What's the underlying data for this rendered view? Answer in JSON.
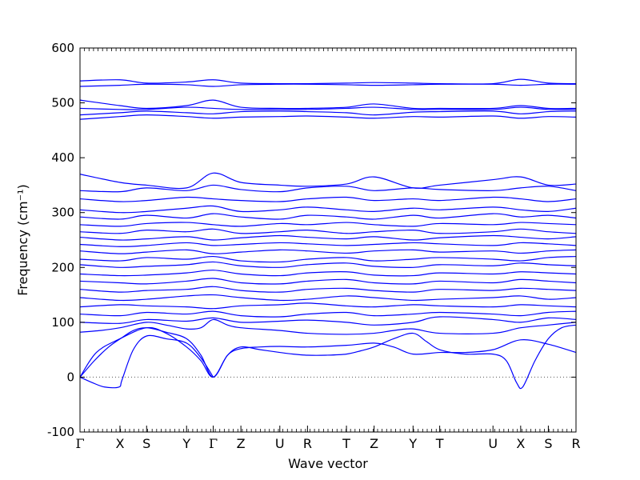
{
  "chart_data": {
    "type": "line",
    "title": "",
    "xlabel": "Wave vector",
    "ylabel": "Frequency (cm⁻¹)",
    "ylim": [
      -100,
      600
    ],
    "yticks": [
      -100,
      0,
      100,
      200,
      300,
      400,
      500,
      600
    ],
    "xlim": [
      0,
      24.2
    ],
    "kpoints": [
      {
        "label": "Γ",
        "x": 0
      },
      {
        "label": "X",
        "x": 1.95
      },
      {
        "label": "S",
        "x": 3.25
      },
      {
        "label": "Y",
        "x": 5.2
      },
      {
        "label": "Γ",
        "x": 6.5
      },
      {
        "label": "Z",
        "x": 7.85
      },
      {
        "label": "U",
        "x": 9.75
      },
      {
        "label": "R",
        "x": 11.1
      },
      {
        "label": "T",
        "x": 13.0
      },
      {
        "label": "Z",
        "x": 14.35
      },
      {
        "label": "Y",
        "x": 16.25
      },
      {
        "label": "T",
        "x": 17.55
      },
      {
        "label": "U",
        "x": 20.15
      },
      {
        "label": "X",
        "x": 21.5
      },
      {
        "label": "S",
        "x": 22.85
      },
      {
        "label": "R",
        "x": 24.2
      }
    ],
    "zero_line": {
      "y": 0,
      "style": "dotted"
    },
    "line_color": "#0000ff",
    "series": [
      {
        "x": [
          0,
          0.6,
          1.2,
          1.9,
          2.05,
          2.6,
          3.25,
          4.2,
          5.2,
          5.9,
          6.5
        ],
        "values": [
          0,
          -10,
          -18,
          -18,
          -5,
          50,
          75,
          70,
          62,
          35,
          0
        ]
      },
      {
        "x": [
          0,
          0.7,
          1.4,
          2.05,
          2.6,
          3.25,
          4.2,
          5.2,
          5.9,
          6.5,
          7.2,
          7.85,
          8.8,
          9.75,
          10.4,
          11.1,
          12.0,
          13.0,
          13.7,
          14.35,
          15.3,
          16.25,
          16.9,
          17.55,
          18.8,
          20.15,
          20.8,
          21.3,
          21.6,
          22.2,
          22.85,
          23.5,
          24.2
        ],
        "values": [
          0,
          30,
          55,
          72,
          85,
          90,
          82,
          70,
          40,
          0,
          40,
          55,
          50,
          45,
          42,
          40,
          40,
          42,
          48,
          55,
          70,
          80,
          65,
          50,
          42,
          42,
          30,
          -10,
          -18,
          30,
          70,
          90,
          95
        ]
      },
      {
        "x": [
          0,
          0.8,
          1.95,
          3.25,
          4.2,
          5.2,
          5.9,
          6.5,
          7.2,
          7.85,
          8.8,
          9.75,
          11.1,
          13.0,
          14.35,
          15.3,
          16.25,
          17.55,
          18.8,
          20.15,
          21.5,
          22.85,
          24.2
        ],
        "values": [
          0,
          45,
          70,
          90,
          80,
          55,
          30,
          0,
          40,
          52,
          55,
          56,
          55,
          58,
          62,
          55,
          42,
          45,
          45,
          50,
          68,
          60,
          45
        ]
      },
      {
        "x": [
          0,
          1.0,
          1.95,
          3.25,
          4.2,
          5.2,
          5.9,
          6.5,
          7.2,
          7.85,
          9.75,
          11.1,
          13.0,
          14.35,
          15.3,
          16.25,
          17.55,
          20.15,
          21.5,
          22.85,
          24.2
        ],
        "values": [
          82,
          85,
          90,
          100,
          95,
          88,
          90,
          105,
          95,
          90,
          85,
          80,
          78,
          80,
          85,
          88,
          80,
          80,
          90,
          95,
          100
        ]
      },
      {
        "x": [
          0,
          1.95,
          3.25,
          5.2,
          6.5,
          7.85,
          9.75,
          11.1,
          13.0,
          14.35,
          16.25,
          17.55,
          20.15,
          21.5,
          22.85,
          24.2
        ],
        "values": [
          100,
          98,
          105,
          102,
          108,
          100,
          102,
          104,
          100,
          95,
          100,
          110,
          105,
          100,
          108,
          105
        ]
      },
      {
        "x": [
          0,
          1.95,
          3.25,
          5.2,
          6.5,
          7.85,
          9.75,
          11.1,
          13.0,
          14.35,
          16.25,
          17.55,
          20.15,
          21.5,
          22.85,
          24.2
        ],
        "values": [
          115,
          112,
          118,
          115,
          120,
          112,
          110,
          115,
          118,
          112,
          115,
          118,
          115,
          112,
          118,
          120
        ]
      },
      {
        "x": [
          0,
          1.95,
          3.25,
          5.2,
          6.5,
          7.85,
          9.75,
          11.1,
          13.0,
          14.35,
          16.25,
          17.55,
          20.15,
          21.5,
          22.85,
          24.2
        ],
        "values": [
          128,
          132,
          130,
          128,
          125,
          130,
          132,
          135,
          130,
          128,
          132,
          130,
          128,
          132,
          130,
          128
        ]
      },
      {
        "x": [
          0,
          1.95,
          3.25,
          5.2,
          6.5,
          7.85,
          9.75,
          11.1,
          13.0,
          14.35,
          16.25,
          17.55,
          20.15,
          21.5,
          22.85,
          24.2
        ],
        "values": [
          145,
          140,
          142,
          148,
          150,
          145,
          140,
          142,
          148,
          145,
          140,
          142,
          145,
          148,
          142,
          145
        ]
      },
      {
        "x": [
          0,
          1.95,
          3.25,
          5.2,
          6.5,
          7.85,
          9.75,
          11.1,
          13.0,
          14.35,
          16.25,
          17.55,
          20.15,
          21.5,
          22.85,
          24.2
        ],
        "values": [
          160,
          155,
          158,
          160,
          165,
          158,
          155,
          160,
          162,
          158,
          155,
          160,
          158,
          162,
          160,
          158
        ]
      },
      {
        "x": [
          0,
          1.95,
          3.25,
          5.2,
          6.5,
          7.85,
          9.75,
          11.1,
          13.0,
          14.35,
          16.25,
          17.55,
          20.15,
          21.5,
          22.85,
          24.2
        ],
        "values": [
          175,
          172,
          170,
          175,
          180,
          172,
          170,
          175,
          178,
          172,
          170,
          175,
          172,
          178,
          175,
          172
        ]
      },
      {
        "x": [
          0,
          1.95,
          3.25,
          5.2,
          6.5,
          7.85,
          9.75,
          11.1,
          13.0,
          14.35,
          16.25,
          17.55,
          20.15,
          21.5,
          22.85,
          24.2
        ],
        "values": [
          188,
          185,
          186,
          190,
          195,
          188,
          185,
          190,
          192,
          186,
          185,
          190,
          188,
          192,
          190,
          188
        ]
      },
      {
        "x": [
          0,
          1.95,
          3.25,
          5.2,
          6.5,
          7.85,
          9.75,
          11.1,
          13.0,
          14.35,
          16.25,
          17.55,
          20.15,
          21.5,
          22.85,
          24.2
        ],
        "values": [
          205,
          200,
          202,
          205,
          210,
          203,
          200,
          205,
          208,
          202,
          200,
          205,
          203,
          208,
          205,
          203
        ]
      },
      {
        "x": [
          0,
          1.95,
          3.25,
          5.2,
          6.5,
          7.85,
          9.75,
          11.1,
          13.0,
          14.35,
          16.25,
          17.55,
          20.15,
          21.5,
          22.85,
          24.2
        ],
        "values": [
          215,
          212,
          218,
          215,
          220,
          212,
          210,
          215,
          218,
          212,
          215,
          218,
          215,
          212,
          218,
          220
        ]
      },
      {
        "x": [
          0,
          1.95,
          3.25,
          5.2,
          6.5,
          7.85,
          9.75,
          11.1,
          13.0,
          14.35,
          16.25,
          17.55,
          20.15,
          21.5,
          22.85,
          24.2
        ],
        "values": [
          230,
          225,
          228,
          232,
          225,
          228,
          232,
          230,
          226,
          230,
          232,
          228,
          230,
          226,
          230,
          232
        ]
      },
      {
        "x": [
          0,
          1.95,
          3.25,
          5.2,
          6.5,
          7.85,
          9.75,
          11.1,
          13.0,
          14.35,
          16.25,
          17.55,
          20.15,
          21.5,
          22.85,
          24.2
        ],
        "values": [
          242,
          238,
          240,
          245,
          240,
          242,
          245,
          243,
          240,
          242,
          245,
          243,
          240,
          245,
          243,
          240
        ]
      },
      {
        "x": [
          0,
          1.95,
          3.25,
          5.2,
          6.5,
          7.85,
          9.75,
          11.1,
          13.0,
          14.35,
          16.25,
          17.55,
          20.15,
          21.5,
          22.85,
          24.2
        ],
        "values": [
          255,
          250,
          252,
          256,
          250,
          254,
          258,
          255,
          252,
          256,
          250,
          254,
          258,
          255,
          252,
          256
        ]
      },
      {
        "x": [
          0,
          1.95,
          3.25,
          5.2,
          6.5,
          7.85,
          9.75,
          11.1,
          13.0,
          14.35,
          16.25,
          17.55,
          20.15,
          21.5,
          22.85,
          24.2
        ],
        "values": [
          265,
          262,
          268,
          265,
          270,
          262,
          265,
          268,
          262,
          265,
          268,
          262,
          265,
          270,
          265,
          262
        ]
      },
      {
        "x": [
          0,
          1.95,
          3.25,
          5.2,
          6.5,
          7.85,
          9.75,
          11.1,
          13.0,
          14.35,
          16.25,
          17.55,
          20.15,
          21.5,
          22.85,
          24.2
        ],
        "values": [
          278,
          275,
          280,
          282,
          278,
          275,
          280,
          278,
          282,
          278,
          275,
          280,
          278,
          282,
          280,
          278
        ]
      },
      {
        "x": [
          0,
          1.95,
          3.25,
          5.2,
          6.5,
          7.85,
          9.75,
          11.1,
          13.0,
          14.35,
          16.25,
          17.55,
          20.15,
          21.5,
          22.85,
          24.2
        ],
        "values": [
          292,
          288,
          295,
          290,
          298,
          292,
          288,
          295,
          292,
          288,
          295,
          290,
          298,
          292,
          295,
          290
        ]
      },
      {
        "x": [
          0,
          1.95,
          3.25,
          5.2,
          6.5,
          7.85,
          9.75,
          11.1,
          13.0,
          14.35,
          16.25,
          17.55,
          20.15,
          21.5,
          22.85,
          24.2
        ],
        "values": [
          305,
          300,
          302,
          308,
          312,
          302,
          305,
          310,
          305,
          302,
          308,
          305,
          310,
          305,
          302,
          308
        ]
      },
      {
        "x": [
          0,
          1.95,
          3.25,
          5.2,
          6.5,
          7.85,
          9.75,
          11.1,
          13.0,
          14.35,
          16.25,
          17.55,
          20.15,
          21.5,
          22.85,
          24.2
        ],
        "values": [
          325,
          320,
          322,
          328,
          325,
          322,
          320,
          325,
          328,
          322,
          325,
          322,
          328,
          325,
          320,
          325
        ]
      },
      {
        "x": [
          0,
          1.95,
          3.25,
          5.2,
          6.5,
          7.85,
          9.75,
          11.1,
          13.0,
          14.35,
          16.25,
          17.55,
          20.15,
          21.5,
          22.85,
          24.2
        ],
        "values": [
          340,
          338,
          345,
          340,
          350,
          342,
          338,
          345,
          348,
          340,
          345,
          342,
          340,
          345,
          348,
          340
        ]
      },
      {
        "x": [
          0,
          1.95,
          3.25,
          5.2,
          6.5,
          7.85,
          9.75,
          11.1,
          13.0,
          14.35,
          16.25,
          17.55,
          20.15,
          21.5,
          22.85,
          24.2
        ],
        "values": [
          370,
          355,
          350,
          345,
          372,
          355,
          350,
          348,
          352,
          365,
          345,
          350,
          360,
          365,
          350,
          352
        ]
      },
      {
        "x": [
          0,
          1.95,
          3.25,
          5.2,
          6.5,
          7.85,
          9.75,
          11.1,
          13.0,
          14.35,
          16.25,
          17.55,
          20.15,
          21.5,
          22.85,
          24.2
        ],
        "values": [
          470,
          475,
          478,
          475,
          472,
          474,
          475,
          476,
          474,
          472,
          475,
          474,
          476,
          472,
          475,
          474
        ]
      },
      {
        "x": [
          0,
          1.95,
          3.25,
          5.2,
          6.5,
          7.85,
          9.75,
          11.1,
          13.0,
          14.35,
          16.25,
          17.55,
          20.15,
          21.5,
          22.85,
          24.2
        ],
        "values": [
          478,
          482,
          485,
          482,
          480,
          484,
          485,
          484,
          482,
          478,
          483,
          484,
          485,
          480,
          484,
          485
        ]
      },
      {
        "x": [
          0,
          1.95,
          3.25,
          5.2,
          6.5,
          7.85,
          9.75,
          11.1,
          13.0,
          14.35,
          16.25,
          17.55,
          20.15,
          21.5,
          22.85,
          24.2
        ],
        "values": [
          490,
          488,
          488,
          492,
          490,
          488,
          488,
          488,
          490,
          492,
          488,
          488,
          488,
          492,
          488,
          488
        ]
      },
      {
        "x": [
          0,
          1.95,
          3.25,
          5.2,
          6.5,
          7.85,
          9.75,
          11.1,
          13.0,
          14.35,
          16.25,
          17.55,
          20.15,
          21.5,
          22.85,
          24.2
        ],
        "values": [
          505,
          495,
          490,
          495,
          505,
          492,
          490,
          490,
          492,
          498,
          490,
          490,
          490,
          495,
          490,
          490
        ]
      },
      {
        "x": [
          0,
          1.95,
          3.25,
          5.2,
          6.5,
          7.85,
          9.75,
          11.1,
          13.0,
          14.35,
          16.25,
          17.55,
          20.15,
          21.5,
          22.85,
          24.2
        ],
        "values": [
          530,
          532,
          534,
          533,
          530,
          533,
          534,
          534,
          533,
          532,
          533,
          534,
          534,
          532,
          534,
          534
        ]
      },
      {
        "x": [
          0,
          1.95,
          3.25,
          5.2,
          6.5,
          7.85,
          9.75,
          11.1,
          13.0,
          14.35,
          16.25,
          17.55,
          20.15,
          21.5,
          22.85,
          24.2
        ],
        "values": [
          540,
          542,
          536,
          538,
          542,
          536,
          535,
          535,
          536,
          537,
          536,
          535,
          535,
          543,
          536,
          535
        ]
      }
    ]
  }
}
